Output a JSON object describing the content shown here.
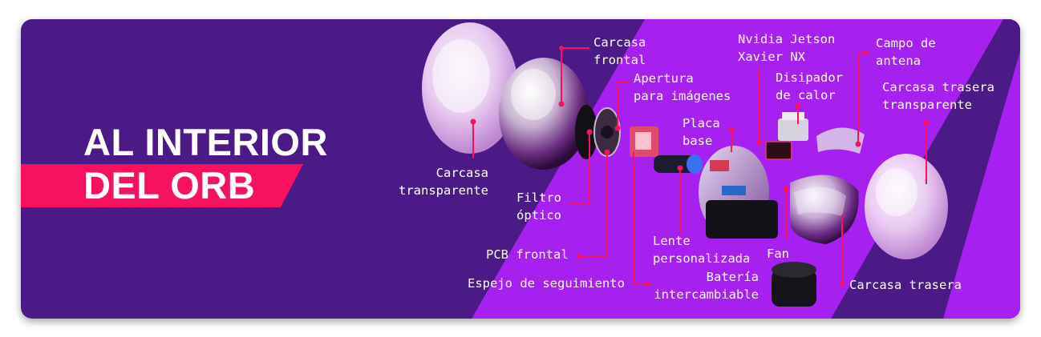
{
  "title": {
    "line1": "AL INTERIOR",
    "line2": "DEL ORB"
  },
  "labels": {
    "carcasa_frontal": [
      "Carcasa",
      "frontal"
    ],
    "apertura": [
      "Apertura",
      "para imágenes"
    ],
    "nvidia": [
      "Nvidia Jetson",
      "Xavier NX"
    ],
    "campo_antena": [
      "Campo de",
      "antena"
    ],
    "disipador": [
      "Disipador",
      "de calor"
    ],
    "carcasa_trasera_transparente": [
      "Carcasa trasera",
      "transparente"
    ],
    "placa_base": [
      "Placa",
      "base"
    ],
    "carcasa_transparente": [
      "Carcasa",
      "transparente"
    ],
    "filtro": [
      "Filtro",
      "óptico"
    ],
    "pcb_frontal": "PCB frontal",
    "lente": [
      "Lente",
      "personalizada"
    ],
    "fan": "Fan",
    "espejo": "Espejo de seguimiento",
    "bateria": [
      "Batería",
      "intercambiable"
    ],
    "carcasa_trasera": "Carcasa trasera"
  },
  "colors": {
    "background": "#4b1a86",
    "stripe": "#a620f0",
    "accent": "#f5135f",
    "text": "#ffffff"
  }
}
